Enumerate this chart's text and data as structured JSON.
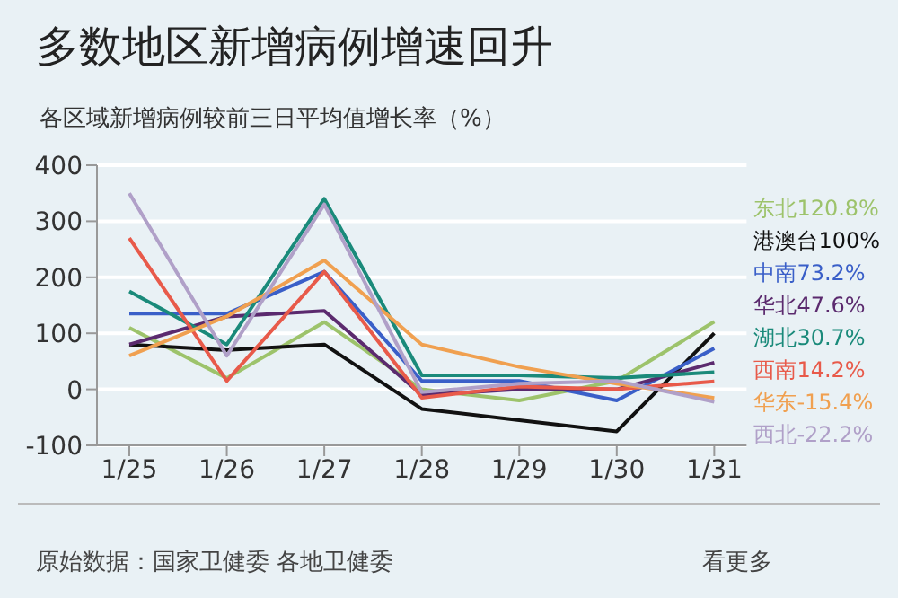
{
  "chart_data": {
    "type": "line",
    "title": "多数地区新增病例增速回升",
    "subtitle": "各区域新增病例较前三日平均值增长率（%）",
    "categories": [
      "1/25",
      "1/26",
      "1/27",
      "1/28",
      "1/29",
      "1/30",
      "1/31"
    ],
    "series": [
      {
        "name": "东北120.8%",
        "color": "#9dc36b",
        "values": [
          110,
          20,
          120,
          0,
          -20,
          15,
          120.8
        ]
      },
      {
        "name": "港澳台100%",
        "color": "#111111",
        "values": [
          80,
          70,
          80,
          -35,
          -55,
          -75,
          100
        ]
      },
      {
        "name": "中南73.2%",
        "color": "#3a5fc8",
        "values": [
          135,
          135,
          210,
          15,
          15,
          -20,
          73.2
        ]
      },
      {
        "name": "华北47.6%",
        "color": "#5b2a6e",
        "values": [
          80,
          130,
          140,
          -10,
          0,
          0,
          47.6
        ]
      },
      {
        "name": "湖北30.7%",
        "color": "#1a8a7a",
        "values": [
          175,
          80,
          340,
          25,
          25,
          20,
          30.7
        ]
      },
      {
        "name": "西南14.2%",
        "color": "#e85a4a",
        "values": [
          270,
          15,
          210,
          -15,
          5,
          0,
          14.2
        ]
      },
      {
        "name": "华东-15.4%",
        "color": "#f0a050",
        "values": [
          60,
          130,
          230,
          80,
          40,
          10,
          -15.4
        ]
      },
      {
        "name": "西北-22.2%",
        "color": "#b0a0c8",
        "values": [
          350,
          60,
          330,
          -5,
          10,
          15,
          -22.2
        ]
      }
    ],
    "ylim": [
      -100,
      400
    ],
    "yticks": [
      -100,
      0,
      100,
      200,
      300,
      400
    ],
    "grid": "y",
    "legend": "right",
    "marker": "none",
    "line_style": "solid",
    "annotations": [
      "原始数据：国家卫健委 各地卫健委",
      "看更多"
    ]
  }
}
